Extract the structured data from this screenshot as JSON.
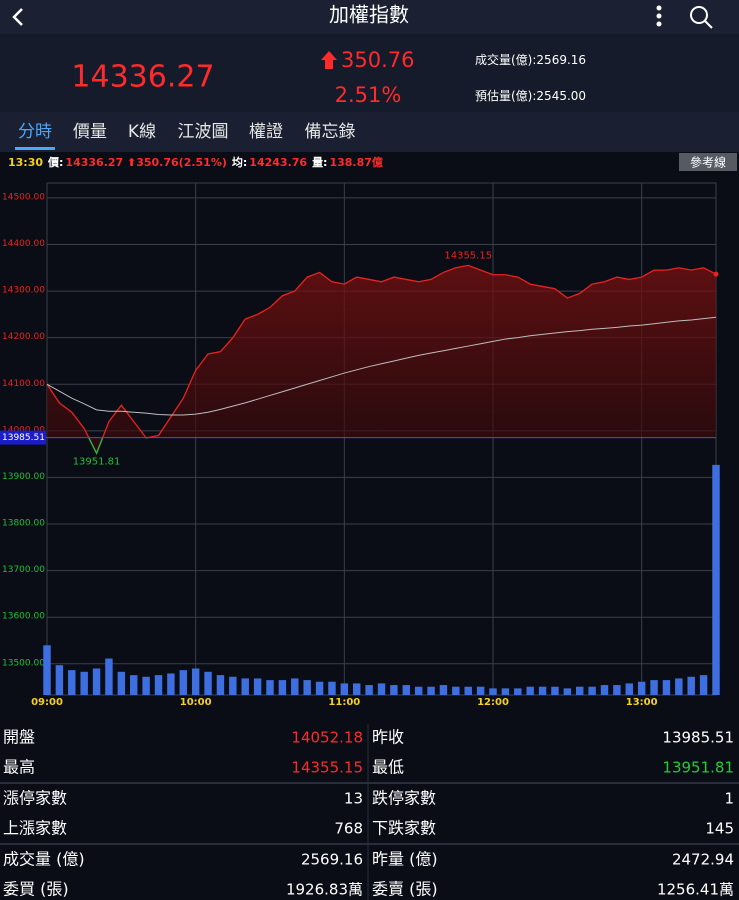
{
  "header": {
    "title": "加權指數"
  },
  "quote": {
    "price": "14336.27",
    "change": "350.76",
    "percent": "2.51%",
    "stats": [
      {
        "label": "成交量(億):",
        "value": "2569.16"
      },
      {
        "label": "預估量(億):",
        "value": "2545.00"
      }
    ]
  },
  "tabs": [
    "分時",
    "價量",
    "K線",
    "江波圖",
    "權證",
    "備忘錄"
  ],
  "info_bar": {
    "time": "13:30",
    "items": [
      {
        "label": "價:",
        "value": "14336.27 ⬆350.76(2.51%)"
      },
      {
        "label": "均:",
        "value": "14243.76"
      },
      {
        "label": "量:",
        "value": "138.87億"
      }
    ],
    "button": "參考線"
  },
  "chart": {
    "type": "line",
    "x": [
      "09:00",
      null,
      null,
      null,
      null,
      null,
      null,
      null,
      null,
      null,
      null,
      null,
      "10:00",
      null,
      null,
      null,
      null,
      null,
      null,
      null,
      null,
      null,
      null,
      null,
      "11:00",
      null,
      null,
      null,
      null,
      null,
      null,
      null,
      null,
      null,
      null,
      null,
      "12:00",
      null,
      null,
      null,
      null,
      null,
      null,
      null,
      null,
      null,
      null,
      null,
      "13:00",
      null,
      null,
      null,
      null,
      null,
      null
    ],
    "series": [
      {
        "name": "價",
        "color": "#e8231f",
        "values": [
          14100,
          14060,
          14040,
          14005,
          13951.81,
          14020,
          14055,
          14020,
          13985,
          13990,
          14030,
          14070,
          14130,
          14165,
          14170,
          14200,
          14240,
          14250,
          14265,
          14290,
          14300,
          14330,
          14340,
          14320,
          14315,
          14330,
          14325,
          14320,
          14330,
          14325,
          14320,
          14325,
          14340,
          14350,
          14355.15,
          14345,
          14335,
          14335,
          14330,
          14315,
          14310,
          14305,
          14285,
          14295,
          14315,
          14320,
          14330,
          14325,
          14330,
          14345,
          14345,
          14350,
          14345,
          14350,
          14336.27
        ]
      },
      {
        "name": "均",
        "color": "#bdbdbd",
        "values": [
          14100,
          14085,
          14070,
          14058,
          14045,
          14042,
          14042,
          14040,
          14038,
          14035,
          14034,
          14034,
          14036,
          14040,
          14046,
          14053,
          14060,
          14068,
          14076,
          14084,
          14092,
          14100,
          14108,
          14116,
          14124,
          14131,
          14138,
          14144,
          14150,
          14156,
          14162,
          14167,
          14172,
          14177,
          14182,
          14187,
          14192,
          14197,
          14200,
          14204,
          14207,
          14210,
          14213,
          14215,
          14218,
          14220,
          14222,
          14225,
          14227,
          14230,
          14233,
          14236,
          14238,
          14241,
          14243.76
        ]
      }
    ],
    "volume": {
      "name": "量",
      "color": "#3d6fe0",
      "values": [
        30,
        18,
        15,
        14,
        16,
        22,
        14,
        12,
        11,
        12,
        13,
        15,
        16,
        14,
        12,
        11,
        10,
        10,
        9,
        9,
        10,
        9,
        8,
        8,
        7,
        7,
        6,
        7,
        6,
        6,
        5,
        5,
        6,
        5,
        5,
        5,
        4,
        4,
        4,
        5,
        5,
        5,
        4,
        5,
        5,
        6,
        6,
        7,
        8,
        9,
        9,
        10,
        11,
        12,
        138.87
      ],
      "lim": [
        0,
        140
      ]
    },
    "ylim": [
      13433,
      14532
    ],
    "yticks": [
      {
        "value": 14500,
        "label": "14500.00"
      },
      {
        "value": 14400,
        "label": "14400.00"
      },
      {
        "value": 14300,
        "label": "14300.00"
      },
      {
        "value": 14200,
        "label": "14200.00"
      },
      {
        "value": 14100,
        "label": "14100.00"
      },
      {
        "value": 14000,
        "label": "14000.00"
      },
      {
        "value": 13900,
        "label": "13900.00"
      },
      {
        "value": 13800,
        "label": "13800.00"
      },
      {
        "value": 13700,
        "label": "13700.00"
      },
      {
        "value": 13600,
        "label": "13600.00"
      },
      {
        "value": 13500,
        "label": "13500.00"
      }
    ],
    "reference": 13985.51,
    "up_color": "#e8231f",
    "down_color": "#1fbf3a",
    "grid": true
  },
  "table": {
    "rows": [
      [
        {
          "label": "開盤",
          "value": "14052.18",
          "color": "#ff2a2a"
        },
        {
          "label": "昨收",
          "value": "13985.51",
          "color": "#ffffff"
        }
      ],
      [
        {
          "label": "最高",
          "value": "14355.15",
          "color": "#ff2a2a"
        },
        {
          "label": "最低",
          "value": "13951.81",
          "color": "#22cc33"
        }
      ],
      [
        {
          "label": "漲停家數",
          "value": "13",
          "color": "#ffffff"
        },
        {
          "label": "跌停家數",
          "value": "1",
          "color": "#ffffff"
        }
      ],
      [
        {
          "label": "上漲家數",
          "value": "768",
          "color": "#ffffff"
        },
        {
          "label": "下跌家數",
          "value": "145",
          "color": "#ffffff"
        }
      ],
      [
        {
          "label": "成交量 (億)",
          "value": "2569.16",
          "color": "#ffffff"
        },
        {
          "label": "昨量 (億)",
          "value": "2472.94",
          "color": "#ffffff"
        }
      ],
      [
        {
          "label": "委買 (張)",
          "value": "1926.83萬",
          "color": "#ffffff"
        },
        {
          "label": "委賣 (張)",
          "value": "1256.41萬",
          "color": "#ffffff"
        }
      ]
    ]
  }
}
